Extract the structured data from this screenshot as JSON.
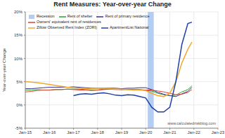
{
  "chart_data": {
    "type": "line",
    "title": "Rent Measures: Year-over-year Change",
    "y_label": "Year-over-year Change",
    "annotations": [
      "www.calculatedriskblog.com"
    ],
    "x": [
      2015,
      2015.25,
      2015.5,
      2015.75,
      2016,
      2016.25,
      2016.5,
      2016.75,
      2017,
      2017.25,
      2017.5,
      2017.75,
      2018,
      2018.25,
      2018.5,
      2018.75,
      2019,
      2019.25,
      2019.5,
      2019.75,
      2020,
      2020.25,
      2020.5,
      2020.75,
      2021,
      2021.25,
      2021.5,
      2021.75,
      2021.917
    ],
    "xlim": [
      2015,
      2023
    ],
    "xticks": [
      {
        "value": 2015,
        "label": "Jan-15"
      },
      {
        "value": 2016,
        "label": "Jan-16"
      },
      {
        "value": 2017,
        "label": "Jan-17"
      },
      {
        "value": 2018,
        "label": "Jan-18"
      },
      {
        "value": 2019,
        "label": "Jan-19"
      },
      {
        "value": 2020,
        "label": "Jan-20"
      },
      {
        "value": 2021,
        "label": "Jan-21"
      },
      {
        "value": 2022,
        "label": "Jan-22"
      },
      {
        "value": 2023,
        "label": "Jan-23"
      }
    ],
    "ylim": [
      -5,
      20
    ],
    "yticks": [
      {
        "value": -5,
        "label": "-5%"
      },
      {
        "value": 0,
        "label": "0%"
      },
      {
        "value": 5,
        "label": "5%"
      },
      {
        "value": 10,
        "label": "10%"
      },
      {
        "value": 15,
        "label": "15%"
      },
      {
        "value": 20,
        "label": "20%"
      }
    ],
    "grid": true,
    "legend": "upper left",
    "shaded_periods": [
      {
        "name": "Recession",
        "color": "#b4cdf0",
        "start": 2020.083,
        "end": 2020.333
      }
    ],
    "series": [
      {
        "name": "Rent of shelter",
        "color": "#2ca02c",
        "values": [
          3.2,
          3.2,
          3.3,
          3.2,
          3.2,
          3.3,
          3.3,
          3.4,
          3.4,
          3.4,
          3.3,
          3.2,
          3.2,
          3.4,
          3.4,
          3.4,
          3.3,
          3.3,
          3.3,
          3.3,
          3.1,
          3.0,
          2.5,
          2.2,
          2.0,
          2.1,
          2.8,
          3.3,
          4.1
        ]
      },
      {
        "name": "Rent of primary residence",
        "color": "#3a2e8c",
        "values": [
          3.5,
          3.5,
          3.6,
          3.7,
          3.8,
          3.8,
          3.8,
          3.8,
          3.9,
          3.8,
          3.7,
          3.6,
          3.6,
          3.6,
          3.6,
          3.6,
          3.5,
          3.6,
          3.6,
          3.7,
          3.7,
          3.3,
          2.7,
          2.3,
          2.0,
          1.8,
          2.4,
          2.9,
          3.8
        ]
      },
      {
        "name": "Owners' equivalent rent of residences",
        "color": "#e03c31",
        "values": [
          2.8,
          2.9,
          3.1,
          3.2,
          3.2,
          3.3,
          3.3,
          3.4,
          3.3,
          3.2,
          3.2,
          3.1,
          3.2,
          3.3,
          3.4,
          3.3,
          3.3,
          3.4,
          3.3,
          3.3,
          3.2,
          3.2,
          3.0,
          2.8,
          2.5,
          2.2,
          2.3,
          2.7,
          3.3
        ]
      },
      {
        "name": "Zillow Observed Rent Index (ZORI)",
        "color": "#f0a830",
        "values": [
          5.0,
          4.9,
          4.8,
          4.6,
          4.4,
          4.2,
          4.0,
          3.8,
          3.7,
          3.6,
          3.5,
          3.5,
          3.6,
          3.6,
          3.5,
          3.4,
          3.4,
          3.3,
          3.2,
          3.2,
          3.1,
          2.5,
          2.0,
          1.8,
          2.5,
          5.0,
          9.0,
          12.0,
          13.5
        ]
      },
      {
        "name": "ApartmentList National",
        "color": "#1f3fa8",
        "values": [
          null,
          null,
          null,
          null,
          null,
          null,
          null,
          null,
          2.0,
          2.3,
          2.4,
          2.3,
          2.5,
          2.6,
          2.4,
          2.1,
          2.0,
          2.2,
          2.1,
          1.8,
          1.5,
          -0.5,
          -1.5,
          -1.5,
          -0.5,
          5.0,
          13.0,
          17.5,
          17.8
        ]
      }
    ]
  }
}
